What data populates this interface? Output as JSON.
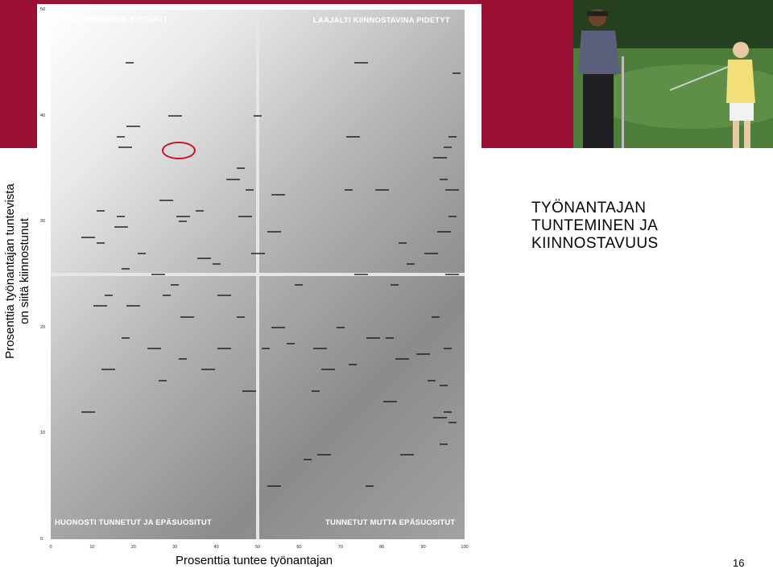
{
  "side_title": [
    "Prosenttia työnantajan tuntevista",
    "on siitä kiinnostunut"
  ],
  "heading": [
    "TYÖNANTAJAN",
    "TUNTEMINEN JA",
    "KIINNOSTAVUUS"
  ],
  "page_number": "16",
  "photo": {
    "icon": "golfers-photo"
  },
  "chart_data": {
    "type": "scatter",
    "title": "",
    "xlabel": "Prosenttia tuntee työnantajan",
    "ylabel": "Prosenttia työnantajan tuntevista on siitä kiinnostunut",
    "xlim": [
      0,
      100
    ],
    "ylim": [
      0,
      50
    ],
    "x_ticks": [
      "0",
      "10",
      "20",
      "30",
      "40",
      "50",
      "60",
      "70",
      "80",
      "90",
      "100"
    ],
    "y_ticks": [
      "0",
      "10",
      "20",
      "30",
      "40",
      "50"
    ],
    "dividers": {
      "x": 50,
      "y": 25
    },
    "grid": false,
    "legend": "none",
    "highlight": {
      "x": 31,
      "y": 36.7
    },
    "quadrants": {
      "top_left": "PIENTEN RYHMIEN SUOSIKIT",
      "top_right": "LAAJALTI KIINNOSTAVINA PIDETYT",
      "bottom_left": "HUONOSTI TUNNETUT JA EPÄSUOSITUT",
      "bottom_right": "TUNNETUT MUTTA EPÄSUOSITUT"
    },
    "points": [
      {
        "x": 19,
        "y": 45
      },
      {
        "x": 75,
        "y": 45
      },
      {
        "x": 98,
        "y": 44
      },
      {
        "x": 30,
        "y": 40
      },
      {
        "x": 50,
        "y": 40
      },
      {
        "x": 20,
        "y": 39
      },
      {
        "x": 17,
        "y": 38
      },
      {
        "x": 73,
        "y": 38
      },
      {
        "x": 97,
        "y": 38
      },
      {
        "x": 18,
        "y": 37
      },
      {
        "x": 96,
        "y": 37
      },
      {
        "x": 94,
        "y": 36
      },
      {
        "x": 46,
        "y": 35
      },
      {
        "x": 44,
        "y": 34
      },
      {
        "x": 95,
        "y": 34
      },
      {
        "x": 97,
        "y": 33
      },
      {
        "x": 72,
        "y": 33
      },
      {
        "x": 80,
        "y": 33
      },
      {
        "x": 48,
        "y": 33
      },
      {
        "x": 55,
        "y": 32.5
      },
      {
        "x": 12,
        "y": 31
      },
      {
        "x": 28,
        "y": 32
      },
      {
        "x": 36,
        "y": 31
      },
      {
        "x": 32,
        "y": 30.5
      },
      {
        "x": 17,
        "y": 30.5
      },
      {
        "x": 47,
        "y": 30.5
      },
      {
        "x": 97,
        "y": 30.5
      },
      {
        "x": 17,
        "y": 29.5
      },
      {
        "x": 32,
        "y": 30
      },
      {
        "x": 9,
        "y": 28.5
      },
      {
        "x": 12,
        "y": 28
      },
      {
        "x": 54,
        "y": 29
      },
      {
        "x": 85,
        "y": 28
      },
      {
        "x": 95,
        "y": 29
      },
      {
        "x": 22,
        "y": 27
      },
      {
        "x": 37,
        "y": 26.5
      },
      {
        "x": 40,
        "y": 26
      },
      {
        "x": 50,
        "y": 27
      },
      {
        "x": 87,
        "y": 26
      },
      {
        "x": 92,
        "y": 27
      },
      {
        "x": 18,
        "y": 25.5
      },
      {
        "x": 26,
        "y": 25
      },
      {
        "x": 30,
        "y": 24
      },
      {
        "x": 42,
        "y": 23
      },
      {
        "x": 60,
        "y": 24
      },
      {
        "x": 75,
        "y": 25
      },
      {
        "x": 83,
        "y": 24
      },
      {
        "x": 97,
        "y": 25
      },
      {
        "x": 14,
        "y": 23
      },
      {
        "x": 20,
        "y": 22
      },
      {
        "x": 28,
        "y": 23
      },
      {
        "x": 33,
        "y": 21
      },
      {
        "x": 46,
        "y": 21
      },
      {
        "x": 55,
        "y": 20
      },
      {
        "x": 70,
        "y": 20
      },
      {
        "x": 78,
        "y": 19
      },
      {
        "x": 93,
        "y": 21
      },
      {
        "x": 12,
        "y": 22
      },
      {
        "x": 18,
        "y": 19
      },
      {
        "x": 25,
        "y": 18
      },
      {
        "x": 32,
        "y": 17
      },
      {
        "x": 42,
        "y": 18
      },
      {
        "x": 58,
        "y": 18.5
      },
      {
        "x": 65,
        "y": 18
      },
      {
        "x": 82,
        "y": 19
      },
      {
        "x": 90,
        "y": 17.5
      },
      {
        "x": 96,
        "y": 18
      },
      {
        "x": 38,
        "y": 16
      },
      {
        "x": 52,
        "y": 18
      },
      {
        "x": 67,
        "y": 16
      },
      {
        "x": 73,
        "y": 16.5
      },
      {
        "x": 85,
        "y": 17
      },
      {
        "x": 92,
        "y": 15
      },
      {
        "x": 14,
        "y": 16
      },
      {
        "x": 27,
        "y": 15
      },
      {
        "x": 48,
        "y": 14
      },
      {
        "x": 64,
        "y": 14
      },
      {
        "x": 82,
        "y": 13
      },
      {
        "x": 96,
        "y": 12
      },
      {
        "x": 9,
        "y": 12
      },
      {
        "x": 95,
        "y": 14.5
      },
      {
        "x": 94,
        "y": 11.5
      },
      {
        "x": 97,
        "y": 11
      },
      {
        "x": 86,
        "y": 8
      },
      {
        "x": 95,
        "y": 9
      },
      {
        "x": 66,
        "y": 8
      },
      {
        "x": 62,
        "y": 7.5
      },
      {
        "x": 54,
        "y": 5
      },
      {
        "x": 77,
        "y": 5
      }
    ]
  }
}
